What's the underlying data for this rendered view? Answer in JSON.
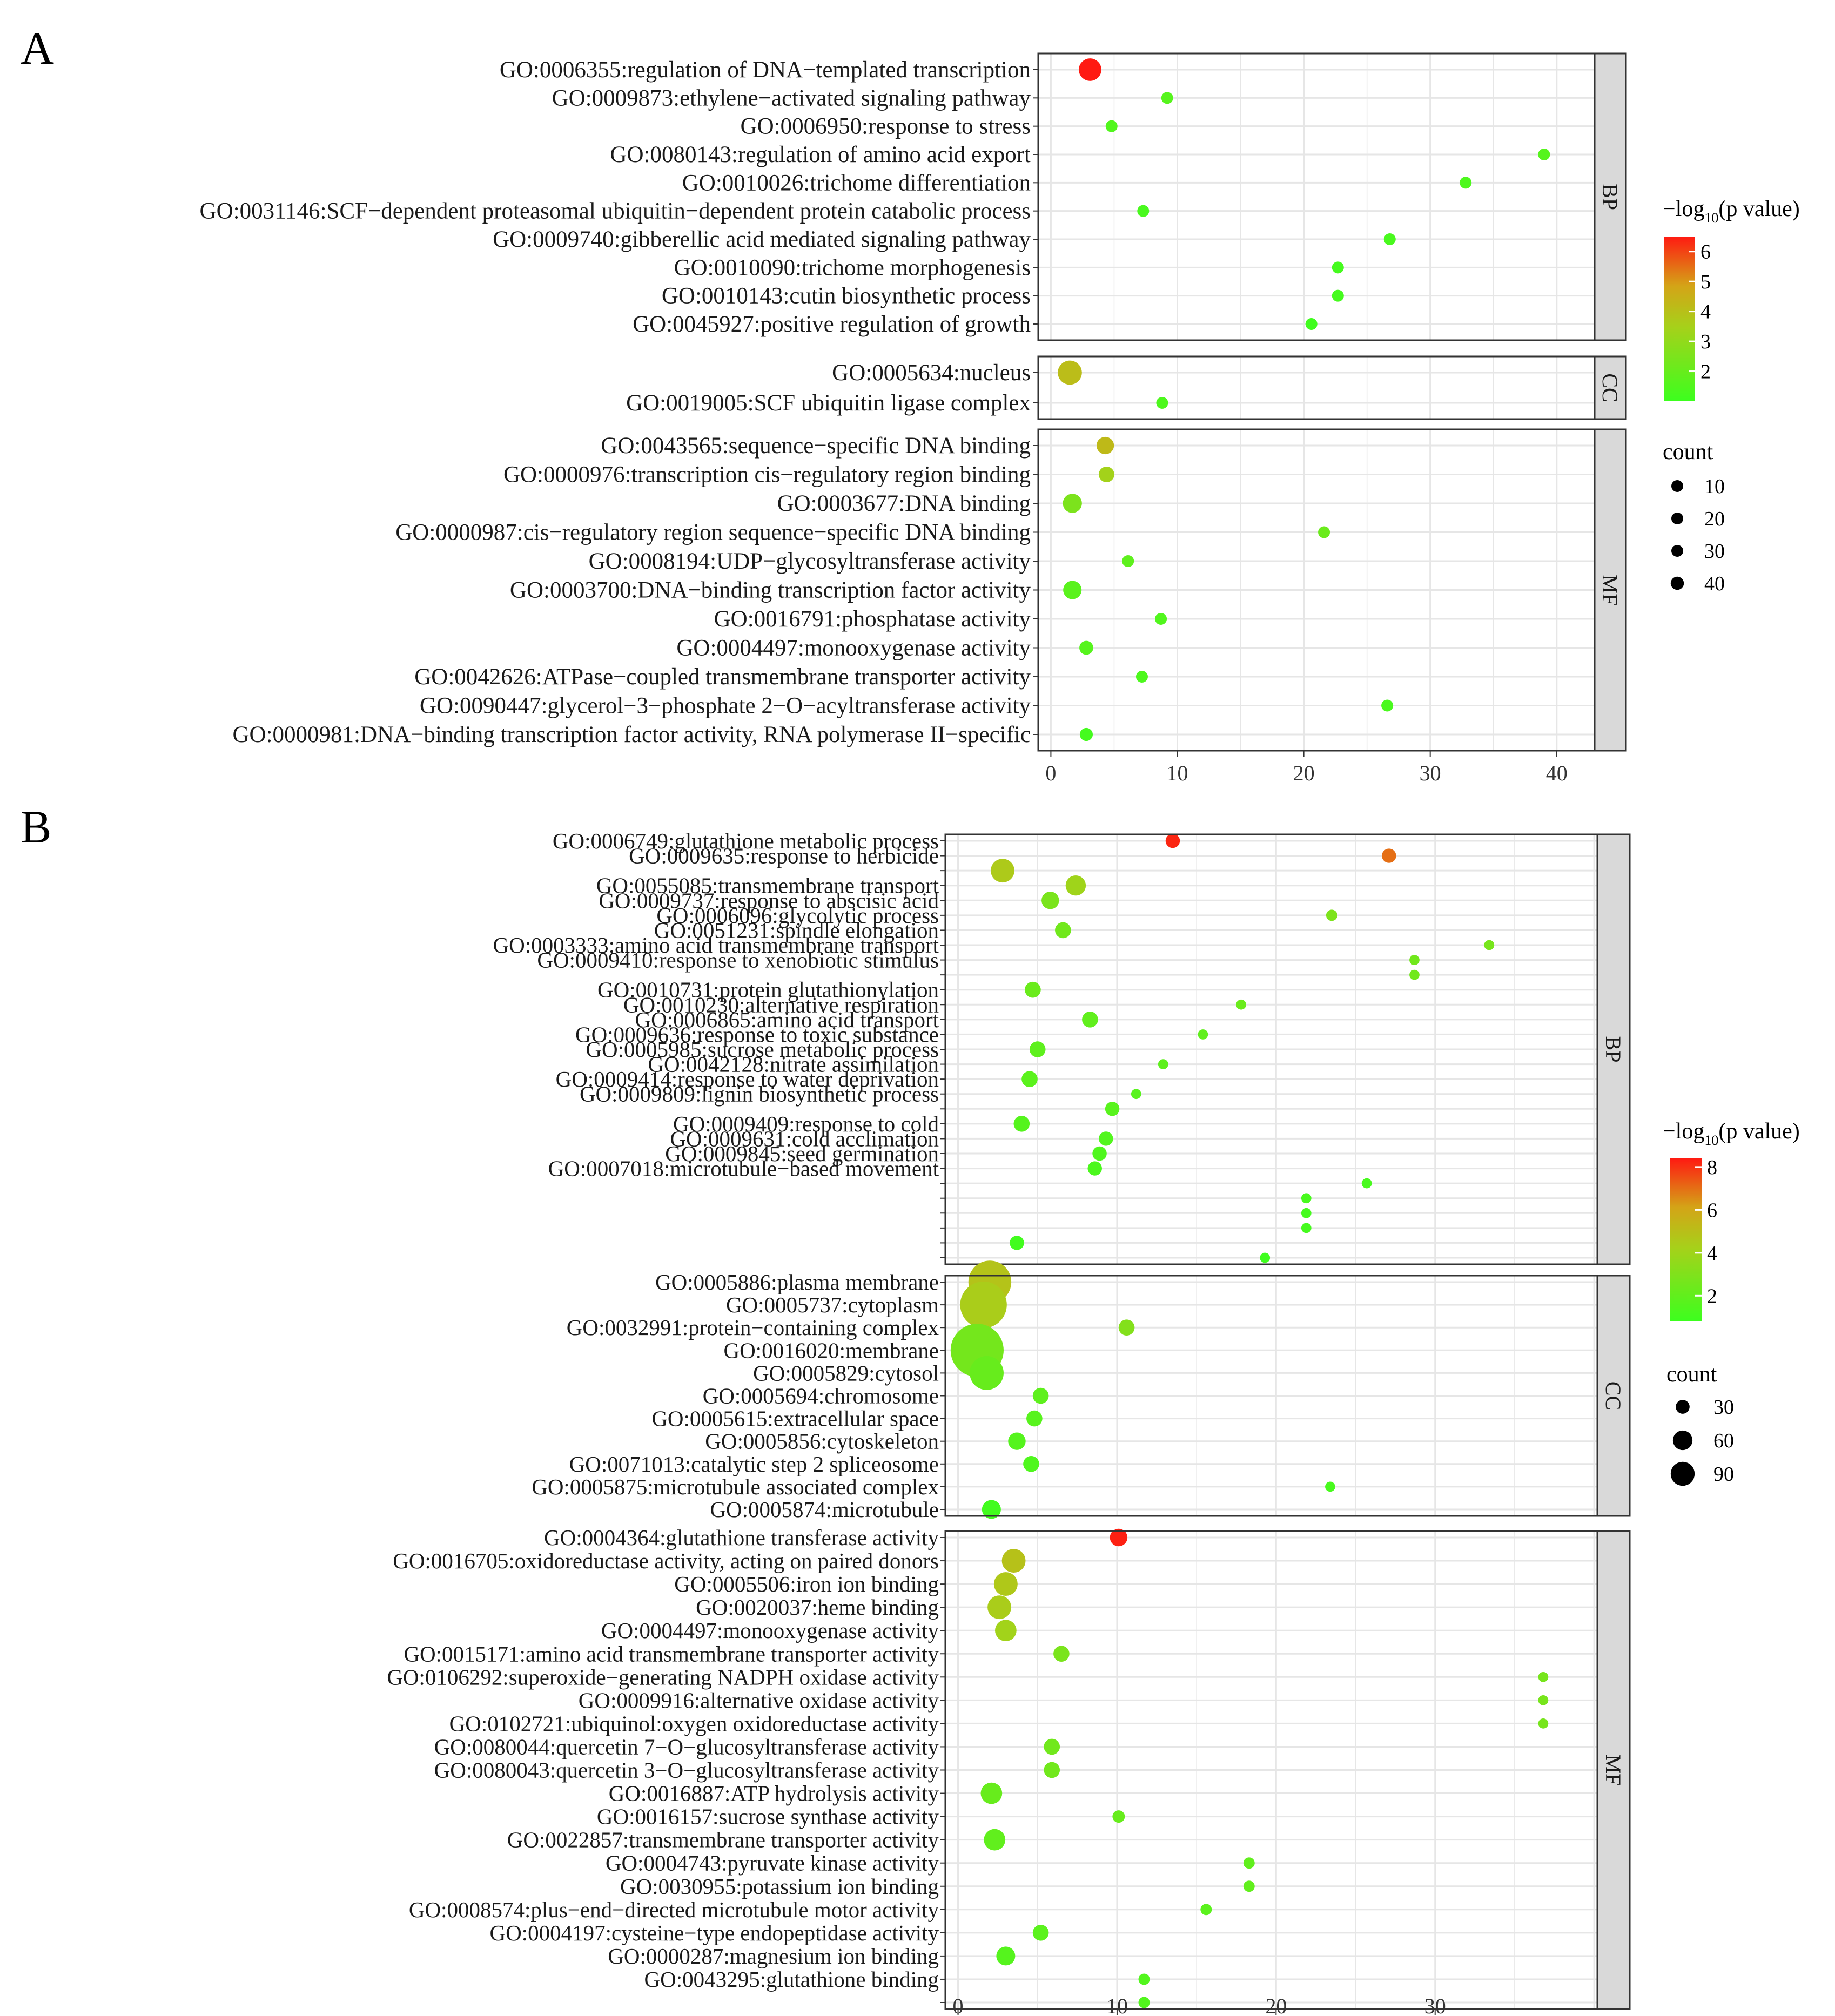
{
  "chart_data": [
    {
      "panel_label": "A",
      "type": "scatter",
      "x_ticks": [
        "0",
        "10",
        "20",
        "30",
        "40"
      ],
      "xlim": [
        -1,
        43
      ],
      "legend": {
        "color_title": "−log",
        "color_title_sub": "10",
        "color_title_tail": "(p value)",
        "color_ticks": [
          "6",
          "5",
          "4",
          "3",
          "2"
        ],
        "color_tick_values": [
          6,
          5,
          4,
          3,
          2
        ],
        "color_range": [
          1,
          6.5
        ],
        "size_title": "count",
        "size_ticks": [
          "10",
          "20",
          "30",
          "40"
        ],
        "size_tick_values": [
          10,
          20,
          30,
          40
        ]
      },
      "facets": [
        {
          "label": "BP",
          "rows": [
            {
              "term": "GO:0006355:regulation of DNA−templated transcription",
              "x": 3.1,
              "count": 42,
              "logp": 6.5
            },
            {
              "term": "GO:0009873:ethylene−activated signaling pathway",
              "x": 9.2,
              "count": 8,
              "logp": 1.6
            },
            {
              "term": "GO:0006950:response to stress",
              "x": 4.8,
              "count": 8,
              "logp": 1.5
            },
            {
              "term": "GO:0080143:regulation of amino acid export",
              "x": 39,
              "count": 4,
              "logp": 1.6
            },
            {
              "term": "GO:0010026:trichome differentiation",
              "x": 32.8,
              "count": 4,
              "logp": 1.4
            },
            {
              "term": "GO:0031146:SCF−dependent proteasomal ubiquitin−dependent protein catabolic process",
              "x": 7.3,
              "count": 6,
              "logp": 1.3
            },
            {
              "term": "GO:0009740:gibberellic acid mediated signaling pathway",
              "x": 26.8,
              "count": 4,
              "logp": 1.3
            },
            {
              "term": "GO:0010090:trichome morphogenesis",
              "x": 22.7,
              "count": 4,
              "logp": 1.2
            },
            {
              "term": "GO:0010143:cutin biosynthetic process",
              "x": 22.7,
              "count": 4,
              "logp": 1.2
            },
            {
              "term": "GO:0045927:positive regulation of growth",
              "x": 20.6,
              "count": 4,
              "logp": 1.1
            }
          ]
        },
        {
          "label": "CC",
          "rows": [
            {
              "term": "GO:0005634:nucleus",
              "x": 1.5,
              "count": 48,
              "logp": 4.1
            },
            {
              "term": "GO:0019005:SCF ubiquitin ligase complex",
              "x": 8.8,
              "count": 6,
              "logp": 1.4
            }
          ]
        },
        {
          "label": "MF",
          "rows": [
            {
              "term": "GO:0043565:sequence−specific DNA binding",
              "x": 4.3,
              "count": 25,
              "logp": 4.2
            },
            {
              "term": "GO:0000976:transcription cis−regulatory region binding",
              "x": 4.4,
              "count": 20,
              "logp": 3.4
            },
            {
              "term": "GO:0003677:DNA binding",
              "x": 1.7,
              "count": 30,
              "logp": 2.5
            },
            {
              "term": "GO:0000987:cis−regulatory region sequence−specific DNA binding",
              "x": 21.6,
              "count": 7,
              "logp": 2.1
            },
            {
              "term": "GO:0008194:UDP−glycosyltransferase activity",
              "x": 6.1,
              "count": 10,
              "logp": 1.8
            },
            {
              "term": "GO:0003700:DNA−binding transcription factor activity",
              "x": 1.7,
              "count": 28,
              "logp": 1.7
            },
            {
              "term": "GO:0016791:phosphatase activity",
              "x": 8.7,
              "count": 8,
              "logp": 1.5
            },
            {
              "term": "GO:0004497:monooxygenase activity",
              "x": 2.8,
              "count": 16,
              "logp": 1.6
            },
            {
              "term": "GO:0042626:ATPase−coupled transmembrane transporter activity",
              "x": 7.2,
              "count": 7,
              "logp": 1.4
            },
            {
              "term": "GO:0090447:glycerol−3−phosphate 2−O−acyltransferase activity",
              "x": 26.6,
              "count": 4,
              "logp": 1.3
            },
            {
              "term": "GO:0000981:DNA−binding transcription factor activity, RNA polymerase II−specific",
              "x": 2.8,
              "count": 14,
              "logp": 1.2
            }
          ]
        }
      ]
    },
    {
      "panel_label": "B",
      "type": "scatter",
      "x_ticks": [
        "0",
        "10",
        "20",
        "30"
      ],
      "xlim": [
        -0.8,
        40.2
      ],
      "legend": {
        "color_title": "−log",
        "color_title_sub": "10",
        "color_title_tail": "(p value)",
        "color_ticks": [
          "8",
          "6",
          "4",
          "2"
        ],
        "color_tick_values": [
          8,
          6,
          4,
          2
        ],
        "color_range": [
          0.8,
          8.4
        ],
        "size_title": "count",
        "size_ticks": [
          "30",
          "60",
          "90"
        ],
        "size_tick_values": [
          30,
          60,
          90
        ]
      },
      "facets": [
        {
          "label": "BP",
          "rows": [
            {
              "term": "GO:0006749:glutathione metabolic process",
              "x": 13.5,
              "count": 8,
              "logp": 8.2
            },
            {
              "term": "GO:0009635:response to herbicide",
              "x": 27.1,
              "count": 8,
              "logp": 7.0
            },
            {
              "term": "",
              "x": 2.8,
              "count": 22,
              "logp": 4.5
            },
            {
              "term": "GO:0055085:transmembrane transport",
              "x": 7.4,
              "count": 16,
              "logp": 4.0
            },
            {
              "term": "GO:0009737:response to abscisic acid",
              "x": 5.8,
              "count": 12,
              "logp": 2.8
            },
            {
              "term": "GO:0006096:glycolytic process",
              "x": 23.5,
              "count": 5,
              "logp": 2.9
            },
            {
              "term": "GO:0051231:spindle elongation",
              "x": 6.6,
              "count": 10,
              "logp": 2.5
            },
            {
              "term": "GO:0003333:amino acid transmembrane transport",
              "x": 33.4,
              "count": 4,
              "logp": 2.7
            },
            {
              "term": "GO:0009410:response to xenobiotic stimulus",
              "x": 28.7,
              "count": 4,
              "logp": 2.5
            },
            {
              "term": "",
              "x": 28.7,
              "count": 4,
              "logp": 2.5
            },
            {
              "term": "GO:0010731:protein glutathionylation",
              "x": 4.7,
              "count": 10,
              "logp": 2.3
            },
            {
              "term": "GO:0010230:alternative respiration",
              "x": 17.8,
              "count": 4,
              "logp": 2.3
            },
            {
              "term": "GO:0006865:amino acid transport",
              "x": 8.3,
              "count": 10,
              "logp": 2.0
            },
            {
              "term": "GO:0009636:response to toxic substance",
              "x": 15.4,
              "count": 4,
              "logp": 2.0
            },
            {
              "term": "GO:0005985:sucrose metabolic process",
              "x": 5.0,
              "count": 10,
              "logp": 1.9
            },
            {
              "term": "GO:0042128:nitrate assimilation",
              "x": 12.9,
              "count": 4,
              "logp": 1.9
            },
            {
              "term": "GO:0009414:response to water deprivation",
              "x": 4.5,
              "count": 10,
              "logp": 1.8
            },
            {
              "term": "GO:0009809:lignin biosynthetic process",
              "x": 11.2,
              "count": 4,
              "logp": 1.7
            },
            {
              "term": "",
              "x": 9.7,
              "count": 8,
              "logp": 1.7
            },
            {
              "term": "GO:0009409:response to cold",
              "x": 4.0,
              "count": 10,
              "logp": 1.6
            },
            {
              "term": "GO:0009631:cold acclimation",
              "x": 9.3,
              "count": 8,
              "logp": 1.5
            },
            {
              "term": "GO:0009845:seed germination",
              "x": 8.9,
              "count": 8,
              "logp": 1.4
            },
            {
              "term": "GO:0007018:microtubule−based movement",
              "x": 8.6,
              "count": 8,
              "logp": 1.3
            },
            {
              "term": "",
              "x": 25.7,
              "count": 4,
              "logp": 1.2
            },
            {
              "term": "",
              "x": 21.9,
              "count": 4,
              "logp": 1.2
            },
            {
              "term": "",
              "x": 21.9,
              "count": 4,
              "logp": 1.1
            },
            {
              "term": "",
              "x": 21.9,
              "count": 4,
              "logp": 1.1
            },
            {
              "term": "",
              "x": 3.7,
              "count": 8,
              "logp": 1.0
            },
            {
              "term": "",
              "x": 19.3,
              "count": 4,
              "logp": 0.9
            }
          ]
        },
        {
          "label": "CC",
          "rows": [
            {
              "term": "GO:0005886:plasma membrane",
              "x": 2.0,
              "count": 72,
              "logp": 4.8
            },
            {
              "term": "GO:0005737:cytoplasm",
              "x": 1.6,
              "count": 85,
              "logp": 4.4
            },
            {
              "term": "GO:0032991:protein−containing complex",
              "x": 10.6,
              "count": 10,
              "logp": 3.1
            },
            {
              "term": "GO:0016020:membrane",
              "x": 1.2,
              "count": 110,
              "logp": 2.6
            },
            {
              "term": "GO:0005829:cytosol",
              "x": 1.8,
              "count": 45,
              "logp": 2.2
            },
            {
              "term": "GO:0005694:chromosome",
              "x": 5.2,
              "count": 10,
              "logp": 1.9
            },
            {
              "term": "GO:0005615:extracellular space",
              "x": 4.8,
              "count": 10,
              "logp": 1.7
            },
            {
              "term": "GO:0005856:cytoskeleton",
              "x": 3.7,
              "count": 12,
              "logp": 1.6
            },
            {
              "term": "GO:0071013:catalytic step 2 spliceosome",
              "x": 4.6,
              "count": 10,
              "logp": 1.4
            },
            {
              "term": "GO:0005875:microtubule associated complex",
              "x": 23.4,
              "count": 4,
              "logp": 1.2
            },
            {
              "term": "GO:0005874:microtubule",
              "x": 2.1,
              "count": 14,
              "logp": 1.0
            }
          ]
        },
        {
          "label": "MF",
          "rows": [
            {
              "term": "GO:0004364:glutathione transferase activity",
              "x": 10.1,
              "count": 12,
              "logp": 8.3
            },
            {
              "term": "GO:0016705:oxidoreductase activity, acting on paired donors",
              "x": 3.5,
              "count": 22,
              "logp": 4.9
            },
            {
              "term": "GO:0005506:iron ion binding",
              "x": 3.0,
              "count": 22,
              "logp": 4.6
            },
            {
              "term": "GO:0020037:heme binding",
              "x": 2.6,
              "count": 22,
              "logp": 4.4
            },
            {
              "term": "GO:0004497:monooxygenase activity",
              "x": 3.0,
              "count": 18,
              "logp": 4.1
            },
            {
              "term": "GO:0015171:amino acid transmembrane transporter activity",
              "x": 6.5,
              "count": 10,
              "logp": 2.8
            },
            {
              "term": "GO:0106292:superoxide−generating NADPH oxidase activity",
              "x": 36.8,
              "count": 4,
              "logp": 2.7
            },
            {
              "term": "GO:0009916:alternative oxidase activity",
              "x": 36.8,
              "count": 4,
              "logp": 2.7
            },
            {
              "term": "GO:0102721:ubiquinol:oxygen oxidoreductase activity",
              "x": 36.8,
              "count": 4,
              "logp": 2.7
            },
            {
              "term": "GO:0080044:quercetin 7−O−glucosyltransferase activity",
              "x": 5.9,
              "count": 10,
              "logp": 2.5
            },
            {
              "term": "GO:0080043:quercetin 3−O−glucosyltransferase activity",
              "x": 5.9,
              "count": 10,
              "logp": 2.5
            },
            {
              "term": "GO:0016887:ATP hydrolysis activity",
              "x": 2.1,
              "count": 18,
              "logp": 2.2
            },
            {
              "term": "GO:0016157:sucrose synthase activity",
              "x": 10.1,
              "count": 6,
              "logp": 2.2
            },
            {
              "term": "GO:0022857:transmembrane transporter activity",
              "x": 2.3,
              "count": 18,
              "logp": 2.0
            },
            {
              "term": "GO:0004743:pyruvate kinase activity",
              "x": 18.3,
              "count": 5,
              "logp": 2.0
            },
            {
              "term": "GO:0030955:potassium ion binding",
              "x": 18.3,
              "count": 5,
              "logp": 2.0
            },
            {
              "term": "GO:0008574:plus−end−directed microtubule motor activity",
              "x": 15.6,
              "count": 5,
              "logp": 1.8
            },
            {
              "term": "GO:0004197:cysteine−type endopeptidase activity",
              "x": 5.2,
              "count": 10,
              "logp": 1.8
            },
            {
              "term": "GO:0000287:magnesium ion binding",
              "x": 3.0,
              "count": 14,
              "logp": 1.6
            },
            {
              "term": "GO:0043295:glutathione binding",
              "x": 11.7,
              "count": 5,
              "logp": 1.5
            },
            {
              "term": "",
              "x": 11.7,
              "count": 5,
              "logp": 1.5
            }
          ]
        }
      ]
    }
  ]
}
